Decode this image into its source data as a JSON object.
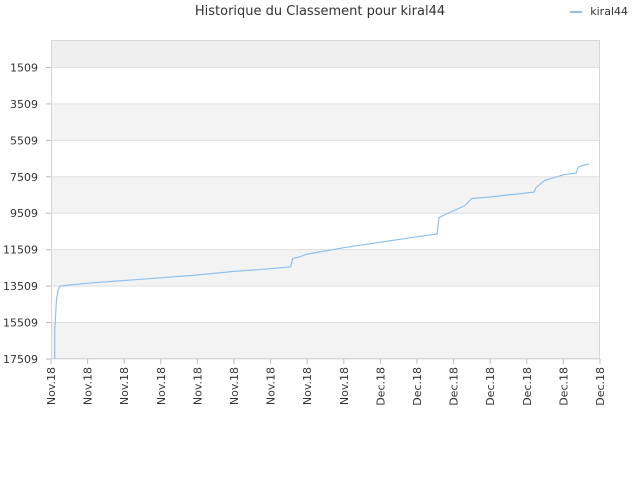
{
  "chart_data": {
    "type": "line",
    "title": "Historique du Classement pour kiral44",
    "xlabel": "",
    "ylabel": "",
    "y_axis_inverted": true,
    "ylim": [
      17509,
      0
    ],
    "y_ticks": [
      1509,
      3509,
      5509,
      7509,
      9509,
      11509,
      13509,
      15509,
      17509
    ],
    "x_ticks": [
      "Nov.18",
      "Nov.18",
      "Nov.18",
      "Nov.18",
      "Nov.18",
      "Nov.18",
      "Nov.18",
      "Nov.18",
      "Nov.18",
      "Dec.18",
      "Dec.18",
      "Dec.18",
      "Dec.18",
      "Dec.18",
      "Dec.18",
      "Dec.18"
    ],
    "legend_position": "top-right",
    "grid": true,
    "series": [
      {
        "name": "kiral44",
        "color": "#8ec1ec",
        "x": [
          0.1,
          0.1,
          0.15,
          0.2,
          0.25,
          1,
          2,
          3,
          4,
          5,
          6,
          6.55,
          6.6,
          6.8,
          7,
          8,
          9,
          10,
          10.55,
          10.6,
          10.8,
          11.3,
          11.5,
          12,
          12.5,
          13,
          13.2,
          13.25,
          13.4,
          13.5,
          14,
          14.35,
          14.4,
          14.5,
          14.7
        ],
        "y": [
          17509,
          16000,
          14200,
          13700,
          13500,
          13350,
          13200,
          13050,
          12900,
          12700,
          12550,
          12450,
          12000,
          11900,
          11750,
          11400,
          11100,
          10800,
          10650,
          9750,
          9550,
          9100,
          8700,
          8620,
          8500,
          8400,
          8350,
          8100,
          7850,
          7700,
          7400,
          7300,
          7000,
          6900,
          6800
        ]
      }
    ]
  }
}
